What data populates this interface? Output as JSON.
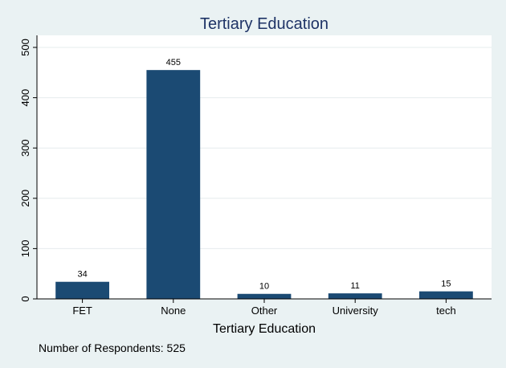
{
  "chart_data": {
    "type": "bar",
    "title": "Tertiary Education",
    "xlabel": "Tertiary Education",
    "ylabel": "",
    "categories": [
      "FET",
      "None",
      "Other",
      "University",
      "tech"
    ],
    "values": [
      34,
      455,
      10,
      11,
      15
    ],
    "ylim": [
      0,
      500
    ],
    "yticks": [
      0,
      100,
      200,
      300,
      400,
      500
    ],
    "grid": true,
    "legend": "none",
    "note": "Number of Respondents: 525"
  },
  "colors": {
    "bar": "#1b4a73",
    "background": "#eaf2f3",
    "plot_background": "#ffffff",
    "grid": "#e6ecee",
    "title": "#1e3366"
  }
}
